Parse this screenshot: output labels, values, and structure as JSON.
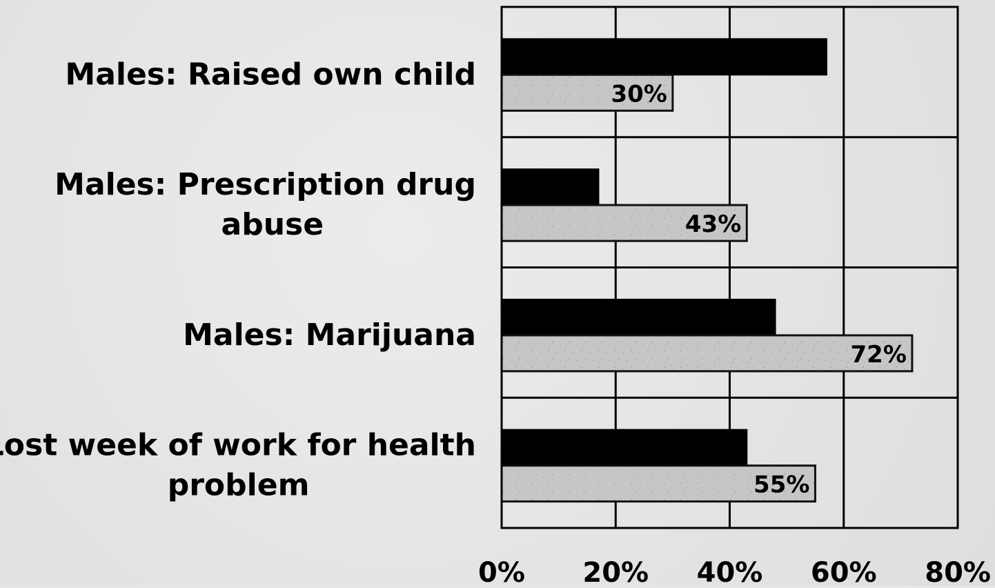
{
  "chart_data": {
    "type": "bar",
    "orientation": "horizontal",
    "categories": [
      [
        "Males: Raised own child"
      ],
      [
        "Males: Prescription drug",
        "abuse"
      ],
      [
        "Males: Marijuana"
      ],
      [
        "Lost week of work for health",
        "problem"
      ]
    ],
    "series": [
      {
        "color": "#000000",
        "values": [
          57,
          17,
          48,
          43
        ]
      },
      {
        "color": "#c4c4c4",
        "values": [
          30,
          43,
          72,
          55
        ],
        "data_labels": [
          "30%",
          "43%",
          "72%",
          "55%"
        ]
      }
    ],
    "x_ticks": [
      "0%",
      "20%",
      "40%",
      "60%",
      "80%"
    ],
    "xlim": [
      0,
      80
    ],
    "grid": true,
    "legend": "none"
  }
}
